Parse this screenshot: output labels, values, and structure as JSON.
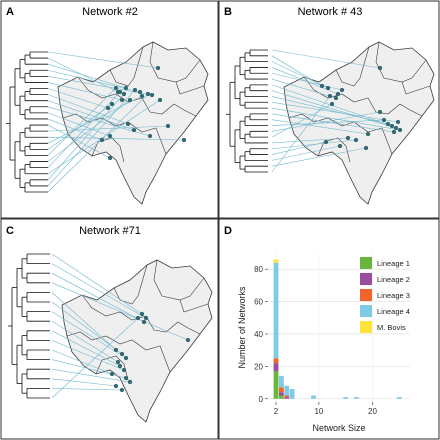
{
  "panels": [
    {
      "letter": "A",
      "title": "Network #2"
    },
    {
      "letter": "B",
      "title": "Network # 43"
    },
    {
      "letter": "C",
      "title": "Network #71"
    },
    {
      "letter": "D",
      "title": ""
    }
  ],
  "chart_data": {
    "type": "bar",
    "stacked": true,
    "xlabel": "Network Size",
    "ylabel": "Number of Networks",
    "xticks": [
      "2",
      "10",
      "20"
    ],
    "yticks": [
      "0",
      "20",
      "40",
      "60",
      "80"
    ],
    "xlim": [
      0.5,
      27
    ],
    "ylim": [
      -2,
      90
    ],
    "legend_position": "top-right",
    "categories": [
      2,
      3,
      4,
      5,
      9,
      15,
      17,
      25
    ],
    "series": [
      {
        "name": "Lineage 1",
        "color": "#6ab53e",
        "values": [
          17,
          2,
          0,
          0,
          0,
          0,
          0,
          0
        ]
      },
      {
        "name": "Lineage 2",
        "color": "#9a4e9e",
        "values": [
          5,
          2,
          1,
          0,
          0,
          0,
          0,
          0
        ]
      },
      {
        "name": "Lineage 3",
        "color": "#f2642c",
        "values": [
          3,
          3,
          1,
          0,
          0,
          0,
          0,
          0
        ]
      },
      {
        "name": "Lineage 4",
        "color": "#7ecbe6",
        "values": [
          59,
          7,
          6,
          6,
          2,
          1,
          1,
          1
        ]
      },
      {
        "name": "M. Bovis",
        "color": "#ffe33b",
        "values": [
          2,
          0,
          0,
          0,
          0,
          0,
          0,
          0
        ]
      }
    ]
  }
}
